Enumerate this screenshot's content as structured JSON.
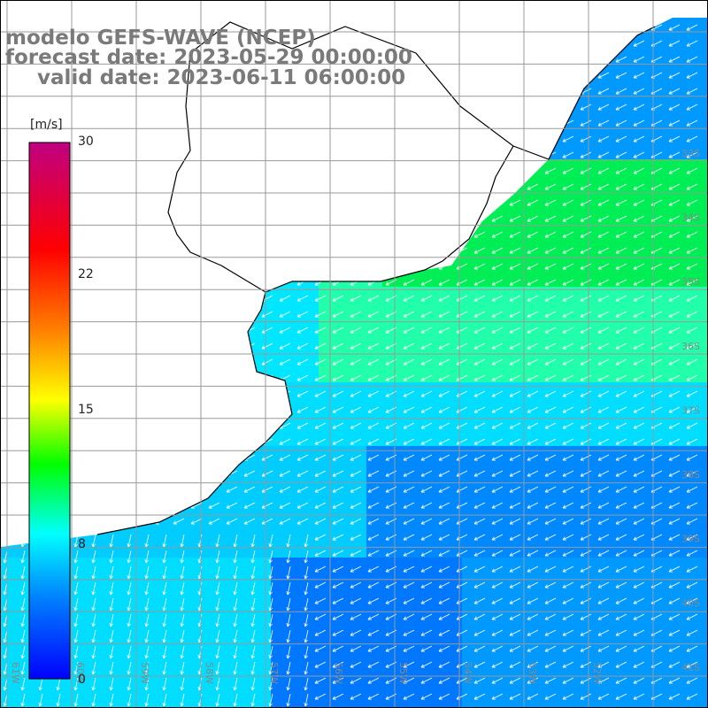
{
  "title": {
    "model": "modelo GEFS-WAVE (NCEP)",
    "forecast": "forecast date: 2023-05-29 00:00:00",
    "valid": "valid date: 2023-06-11 06:00:00"
  },
  "colorbar": {
    "unit": "[m/s]",
    "ticks": [
      30,
      22,
      15,
      8,
      0
    ],
    "tick_labels": [
      "30",
      "22",
      "15",
      "8",
      "0"
    ],
    "range": [
      0,
      30
    ],
    "colors": [
      "#0000ff",
      "#0080ff",
      "#00ffff",
      "#00ff00",
      "#ffff00",
      "#ff8000",
      "#ff0000",
      "#c00080"
    ]
  },
  "map": {
    "lat_labels": [
      "33S",
      "34S",
      "35S",
      "36S",
      "37S",
      "38S",
      "39S",
      "40S",
      "41S"
    ],
    "lon_labels": [
      "61W",
      "60W",
      "59W",
      "58W",
      "57W",
      "56W",
      "55W",
      "54W",
      "53W",
      "52W"
    ],
    "wind_direction": "toward south-west",
    "land_color": "#ffffff",
    "grid_color": "#999999",
    "arrow_color": "#ffffff"
  }
}
